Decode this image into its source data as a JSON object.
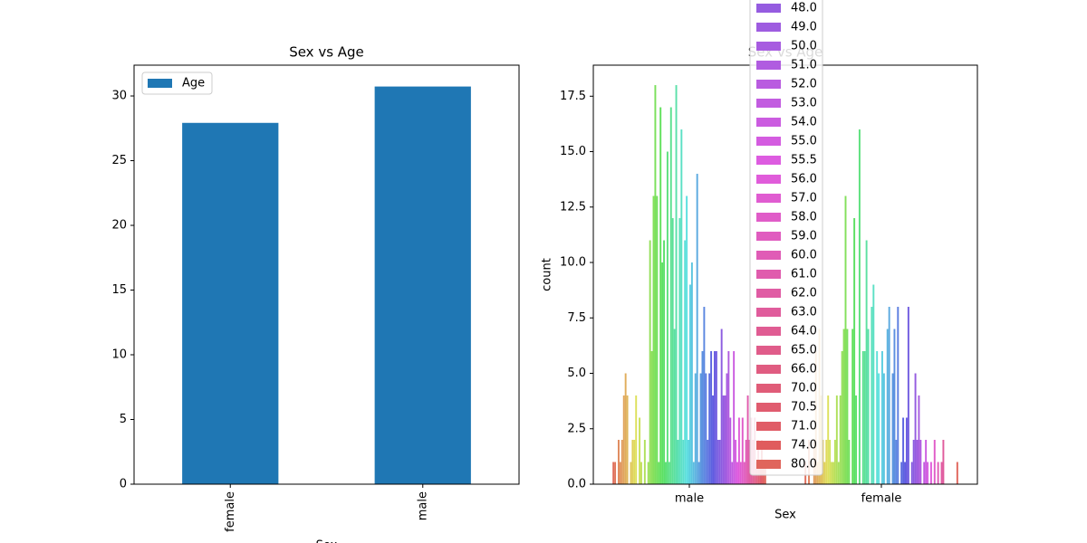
{
  "chart_data": [
    {
      "type": "bar",
      "title": "Sex vs Age",
      "xlabel": "Sex",
      "categories": [
        "female",
        "male"
      ],
      "series": [
        {
          "name": "Age",
          "color": "#1f77b4",
          "values": [
            27.92,
            30.73
          ]
        }
      ],
      "ylim": [
        0,
        32.38
      ],
      "yticks": [
        0,
        5,
        10,
        15,
        20,
        25,
        30
      ],
      "xtick_rotation": 90,
      "legend": "upper left"
    },
    {
      "type": "grouped_bar",
      "title": "Sex vs Age",
      "xlabel": "Sex",
      "ylabel": "count",
      "categories": [
        "male",
        "female"
      ],
      "palette": "husl",
      "legend": "upper center",
      "ylim": [
        0,
        18.9
      ],
      "yticks": [
        {
          "value": 0,
          "label": "0.0"
        },
        {
          "value": 2.5,
          "label": "2.5"
        },
        {
          "value": 5,
          "label": "5.0"
        },
        {
          "value": 7.5,
          "label": "7.5"
        },
        {
          "value": 10,
          "label": "10.0"
        },
        {
          "value": 12.5,
          "label": "12.5"
        },
        {
          "value": 15,
          "label": "15.0"
        },
        {
          "value": 17.5,
          "label": "17.5"
        }
      ],
      "series": [
        {
          "name": null,
          "values": [
            1,
            1
          ]
        },
        {
          "name": null,
          "values": [
            1,
            0
          ]
        },
        {
          "name": null,
          "values": [
            0,
            2
          ]
        },
        {
          "name": null,
          "values": [
            2,
            0
          ]
        },
        {
          "name": null,
          "values": [
            1,
            0
          ]
        },
        {
          "name": null,
          "values": [
            2,
            2
          ]
        },
        {
          "name": null,
          "values": [
            4,
            6
          ]
        },
        {
          "name": null,
          "values": [
            5,
            1
          ]
        },
        {
          "name": null,
          "values": [
            4,
            7
          ]
        },
        {
          "name": null,
          "values": [
            0,
            4
          ]
        },
        {
          "name": null,
          "values": [
            1,
            2
          ]
        },
        {
          "name": null,
          "values": [
            2,
            1
          ]
        },
        {
          "name": null,
          "values": [
            2,
            2
          ]
        },
        {
          "name": null,
          "values": [
            4,
            4
          ]
        },
        {
          "name": null,
          "values": [
            0,
            2
          ]
        },
        {
          "name": null,
          "values": [
            3,
            1
          ]
        },
        {
          "name": null,
          "values": [
            1,
            1
          ]
        },
        {
          "name": null,
          "values": [
            0,
            2
          ]
        },
        {
          "name": null,
          "values": [
            2,
            4
          ]
        },
        {
          "name": null,
          "values": [
            0,
            1
          ]
        },
        {
          "name": null,
          "values": [
            1,
            4
          ]
        },
        {
          "name": null,
          "values": [
            11,
            6
          ]
        },
        {
          "name": null,
          "values": [
            6,
            7
          ]
        },
        {
          "name": null,
          "values": [
            13,
            13
          ]
        },
        {
          "name": null,
          "values": [
            18,
            7
          ]
        },
        {
          "name": null,
          "values": [
            13,
            2
          ]
        },
        {
          "name": null,
          "values": [
            1,
            0
          ]
        },
        {
          "name": null,
          "values": [
            17,
            7
          ]
        },
        {
          "name": null,
          "values": [
            10,
            12
          ]
        },
        {
          "name": null,
          "values": [
            11,
            4
          ]
        },
        {
          "name": null,
          "values": [
            1,
            0
          ]
        },
        {
          "name": null,
          "values": [
            15,
            16
          ]
        },
        {
          "name": null,
          "values": [
            1,
            0
          ]
        },
        {
          "name": null,
          "values": [
            17,
            6
          ]
        },
        {
          "name": null,
          "values": [
            12,
            6
          ]
        },
        {
          "name": null,
          "values": [
            7,
            11
          ]
        },
        {
          "name": null,
          "values": [
            18,
            7
          ]
        },
        {
          "name": null,
          "values": [
            2,
            0
          ]
        },
        {
          "name": null,
          "values": [
            12,
            8
          ]
        },
        {
          "name": null,
          "values": [
            16,
            9
          ]
        },
        {
          "name": null,
          "values": [
            2,
            0
          ]
        },
        {
          "name": null,
          "values": [
            11,
            6
          ]
        },
        {
          "name": null,
          "values": [
            13,
            5
          ]
        },
        {
          "name": null,
          "values": [
            2,
            0
          ]
        },
        {
          "name": null,
          "values": [
            9,
            6
          ]
        },
        {
          "name": null,
          "values": [
            10,
            5
          ]
        },
        {
          "name": null,
          "values": [
            1,
            0
          ]
        },
        {
          "name": null,
          "values": [
            5,
            7
          ]
        },
        {
          "name": null,
          "values": [
            14,
            8
          ]
        },
        {
          "name": null,
          "values": [
            1,
            0
          ]
        },
        {
          "name": null,
          "values": [
            5,
            5
          ]
        },
        {
          "name": null,
          "values": [
            6,
            7
          ]
        },
        {
          "name": null,
          "values": [
            8,
            2
          ]
        },
        {
          "name": null,
          "values": [
            5,
            8
          ]
        },
        {
          "name": null,
          "values": [
            2,
            0
          ]
        },
        {
          "name": null,
          "values": [
            5,
            1
          ]
        },
        {
          "name": null,
          "values": [
            6,
            3
          ]
        },
        {
          "name": null,
          "values": [
            4,
            1
          ]
        },
        {
          "name": null,
          "values": [
            6,
            3
          ]
        },
        {
          "name": null,
          "values": [
            6,
            8
          ]
        },
        {
          "name": null,
          "values": [
            2,
            0
          ]
        },
        {
          "name": null,
          "values": [
            2,
            1
          ]
        },
        {
          "name": null,
          "values": [
            7,
            2
          ]
        },
        {
          "name": "48.0",
          "values": [
            4,
            5
          ]
        },
        {
          "name": "49.0",
          "values": [
            4,
            2
          ]
        },
        {
          "name": "50.0",
          "values": [
            5,
            4
          ]
        },
        {
          "name": "51.0",
          "values": [
            6,
            2
          ]
        },
        {
          "name": "52.0",
          "values": [
            3,
            0
          ]
        },
        {
          "name": "53.0",
          "values": [
            1,
            1
          ]
        },
        {
          "name": "54.0",
          "values": [
            6,
            2
          ]
        },
        {
          "name": "55.0",
          "values": [
            2,
            1
          ]
        },
        {
          "name": "55.5",
          "values": [
            1,
            0
          ]
        },
        {
          "name": "56.0",
          "values": [
            3,
            1
          ]
        },
        {
          "name": "57.0",
          "values": [
            1,
            0
          ]
        },
        {
          "name": "58.0",
          "values": [
            3,
            2
          ]
        },
        {
          "name": "59.0",
          "values": [
            1,
            0
          ]
        },
        {
          "name": "60.0",
          "values": [
            2,
            1
          ]
        },
        {
          "name": "61.0",
          "values": [
            4,
            0
          ]
        },
        {
          "name": "62.0",
          "values": [
            2,
            1
          ]
        },
        {
          "name": "63.0",
          "values": [
            3,
            2
          ]
        },
        {
          "name": "64.0",
          "values": [
            2,
            0
          ]
        },
        {
          "name": "65.0",
          "values": [
            3,
            0
          ]
        },
        {
          "name": "66.0",
          "values": [
            1,
            0
          ]
        },
        {
          "name": "70.0",
          "values": [
            2,
            0
          ]
        },
        {
          "name": "70.5",
          "values": [
            1,
            0
          ]
        },
        {
          "name": "71.0",
          "values": [
            2,
            0
          ]
        },
        {
          "name": "74.0",
          "values": [
            1,
            0
          ]
        },
        {
          "name": "80.0",
          "values": [
            1,
            1
          ]
        }
      ]
    }
  ]
}
